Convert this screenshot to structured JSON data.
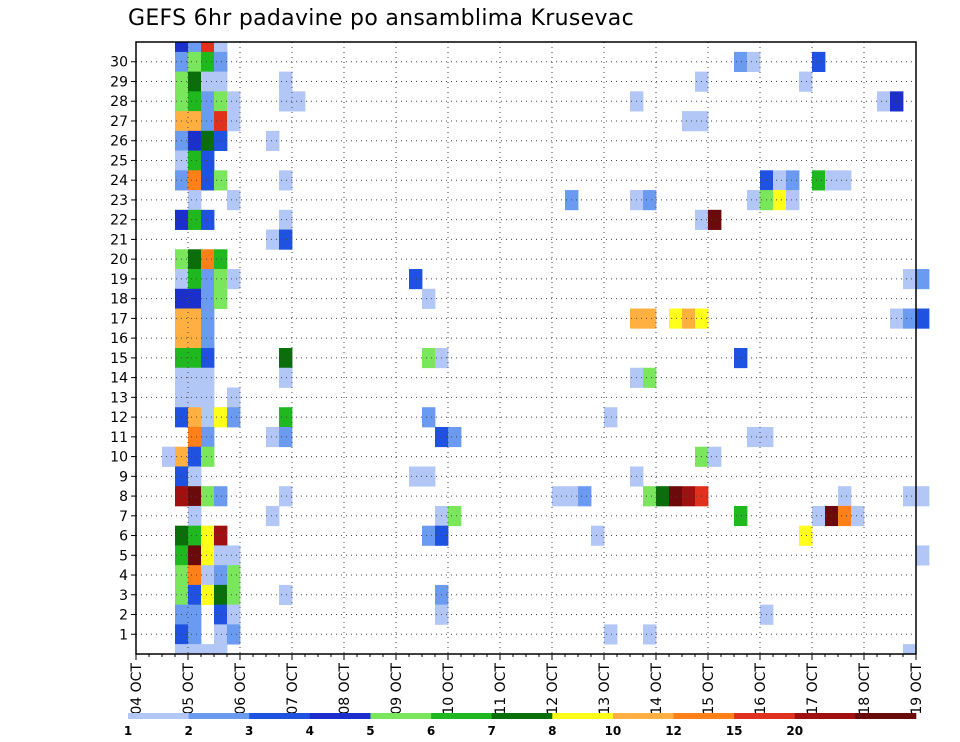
{
  "chart_data": {
    "type": "heatmap",
    "title": "GEFS 6hr padavine po ansamblima Krusevac",
    "xlabel": "",
    "ylabel": "",
    "x_tick_labels": [
      "04 OCT",
      "05 OCT",
      "06 OCT",
      "07 OCT",
      "08 OCT",
      "09 OCT",
      "10 OCT",
      "11 OCT",
      "12 OCT",
      "13 OCT",
      "14 OCT",
      "15 OCT",
      "16 OCT",
      "17 OCT",
      "18 OCT",
      "19 OCT"
    ],
    "y_tick_labels": [
      "1",
      "2",
      "3",
      "4",
      "5",
      "6",
      "7",
      "8",
      "9",
      "10",
      "11",
      "12",
      "13",
      "14",
      "15",
      "16",
      "17",
      "18",
      "19",
      "20",
      "21",
      "22",
      "23",
      "24",
      "25",
      "26",
      "27",
      "28",
      "29",
      "30"
    ],
    "time_steps_per_day": 4,
    "grid": true,
    "colorbar": {
      "position": "bottom",
      "labels": [
        "1",
        "2",
        "3",
        "4",
        "5",
        "6",
        "7",
        "8",
        "10",
        "12",
        "15",
        "20"
      ],
      "colors": [
        "#b3c7f7",
        "#6b9bf0",
        "#1f52e0",
        "#1a2fcc",
        "#7ae65c",
        "#1fb81f",
        "#0a6e0a",
        "#ffff1a",
        "#ffb040",
        "#ff7f19",
        "#e0301e",
        "#a01010",
        "#6b0a0a"
      ]
    },
    "colors": [
      "#b3c7f7",
      "#6b9bf0",
      "#1f52e0",
      "#1a2fcc",
      "#7ae65c",
      "#1fb81f",
      "#0a6e0a",
      "#ffff1a",
      "#ffb040",
      "#ff7f19",
      "#e0301e",
      "#a01010",
      "#6b0a0a"
    ],
    "cells": [
      [
        30,
        3,
        3
      ],
      [
        30,
        4,
        1
      ],
      [
        30,
        5,
        10
      ],
      [
        30,
        6,
        0
      ],
      [
        29,
        3,
        1
      ],
      [
        29,
        4,
        4
      ],
      [
        29,
        5,
        5
      ],
      [
        29,
        6,
        1
      ],
      [
        29,
        46,
        1
      ],
      [
        29,
        47,
        0
      ],
      [
        29,
        52,
        2
      ],
      [
        28,
        3,
        4
      ],
      [
        28,
        4,
        6
      ],
      [
        28,
        5,
        0
      ],
      [
        28,
        6,
        0
      ],
      [
        28,
        11,
        0
      ],
      [
        28,
        43,
        0
      ],
      [
        28,
        51,
        0
      ],
      [
        27,
        3,
        4
      ],
      [
        27,
        4,
        5
      ],
      [
        27,
        5,
        1
      ],
      [
        27,
        6,
        4
      ],
      [
        27,
        7,
        0
      ],
      [
        27,
        11,
        0
      ],
      [
        27,
        12,
        0
      ],
      [
        27,
        38,
        0
      ],
      [
        27,
        57,
        0
      ],
      [
        27,
        58,
        3
      ],
      [
        26,
        3,
        8
      ],
      [
        26,
        4,
        8
      ],
      [
        26,
        5,
        1
      ],
      [
        26,
        6,
        10
      ],
      [
        26,
        7,
        0
      ],
      [
        26,
        42,
        0
      ],
      [
        26,
        43,
        0
      ],
      [
        25,
        3,
        1
      ],
      [
        25,
        4,
        3
      ],
      [
        25,
        5,
        6
      ],
      [
        25,
        6,
        2
      ],
      [
        25,
        10,
        0
      ],
      [
        24,
        3,
        0
      ],
      [
        24,
        4,
        5
      ],
      [
        24,
        5,
        2
      ],
      [
        23,
        3,
        1
      ],
      [
        23,
        4,
        9
      ],
      [
        23,
        5,
        2
      ],
      [
        23,
        6,
        4
      ],
      [
        23,
        11,
        0
      ],
      [
        23,
        48,
        2
      ],
      [
        23,
        49,
        0
      ],
      [
        23,
        50,
        1
      ],
      [
        23,
        52,
        5
      ],
      [
        23,
        53,
        0
      ],
      [
        23,
        54,
        0
      ],
      [
        22,
        4,
        0
      ],
      [
        22,
        7,
        0
      ],
      [
        22,
        33,
        1
      ],
      [
        22,
        38,
        0
      ],
      [
        22,
        39,
        1
      ],
      [
        22,
        47,
        0
      ],
      [
        22,
        48,
        4
      ],
      [
        22,
        49,
        7
      ],
      [
        22,
        50,
        0
      ],
      [
        21,
        3,
        3
      ],
      [
        21,
        4,
        5
      ],
      [
        21,
        5,
        2
      ],
      [
        21,
        11,
        0
      ],
      [
        21,
        43,
        0
      ],
      [
        21,
        44,
        12
      ],
      [
        20,
        10,
        0
      ],
      [
        20,
        11,
        2
      ],
      [
        19,
        3,
        4
      ],
      [
        19,
        4,
        6
      ],
      [
        19,
        5,
        9
      ],
      [
        19,
        6,
        5
      ],
      [
        18,
        3,
        0
      ],
      [
        18,
        4,
        5
      ],
      [
        18,
        5,
        1
      ],
      [
        18,
        6,
        4
      ],
      [
        18,
        7,
        0
      ],
      [
        18,
        21,
        2
      ],
      [
        18,
        59,
        0
      ],
      [
        18,
        60,
        1
      ],
      [
        17,
        3,
        3
      ],
      [
        17,
        4,
        3
      ],
      [
        17,
        5,
        1
      ],
      [
        17,
        6,
        4
      ],
      [
        17,
        22,
        0
      ],
      [
        16,
        3,
        8
      ],
      [
        16,
        4,
        8
      ],
      [
        16,
        5,
        1
      ],
      [
        16,
        38,
        8
      ],
      [
        16,
        39,
        8
      ],
      [
        16,
        41,
        7
      ],
      [
        16,
        42,
        8
      ],
      [
        16,
        43,
        7
      ],
      [
        16,
        58,
        0
      ],
      [
        16,
        59,
        1
      ],
      [
        16,
        60,
        2
      ],
      [
        15,
        3,
        8
      ],
      [
        15,
        4,
        8
      ],
      [
        15,
        5,
        1
      ],
      [
        14,
        3,
        5
      ],
      [
        14,
        4,
        5
      ],
      [
        14,
        5,
        2
      ],
      [
        14,
        11,
        6
      ],
      [
        14,
        22,
        4
      ],
      [
        14,
        23,
        0
      ],
      [
        14,
        46,
        2
      ],
      [
        13,
        3,
        0
      ],
      [
        13,
        4,
        0
      ],
      [
        13,
        5,
        0
      ],
      [
        13,
        11,
        0
      ],
      [
        13,
        38,
        0
      ],
      [
        13,
        39,
        4
      ],
      [
        12,
        3,
        0
      ],
      [
        12,
        4,
        0
      ],
      [
        12,
        5,
        0
      ],
      [
        12,
        7,
        0
      ],
      [
        11,
        3,
        2
      ],
      [
        11,
        4,
        8
      ],
      [
        11,
        5,
        0
      ],
      [
        11,
        6,
        7
      ],
      [
        11,
        7,
        1
      ],
      [
        11,
        11,
        5
      ],
      [
        11,
        22,
        1
      ],
      [
        11,
        36,
        0
      ],
      [
        10,
        4,
        9
      ],
      [
        10,
        5,
        1
      ],
      [
        10,
        10,
        0
      ],
      [
        10,
        11,
        1
      ],
      [
        10,
        23,
        2
      ],
      [
        10,
        24,
        1
      ],
      [
        10,
        47,
        0
      ],
      [
        10,
        48,
        0
      ],
      [
        9,
        2,
        0
      ],
      [
        9,
        3,
        8
      ],
      [
        9,
        4,
        2
      ],
      [
        9,
        5,
        4
      ],
      [
        9,
        43,
        4
      ],
      [
        9,
        44,
        0
      ],
      [
        8,
        3,
        2
      ],
      [
        8,
        4,
        0
      ],
      [
        8,
        21,
        0
      ],
      [
        8,
        22,
        0
      ],
      [
        8,
        38,
        0
      ],
      [
        7,
        3,
        11
      ],
      [
        7,
        4,
        12
      ],
      [
        7,
        5,
        4
      ],
      [
        7,
        6,
        1
      ],
      [
        7,
        11,
        0
      ],
      [
        7,
        32,
        0
      ],
      [
        7,
        33,
        0
      ],
      [
        7,
        34,
        1
      ],
      [
        7,
        39,
        4
      ],
      [
        7,
        40,
        6
      ],
      [
        7,
        41,
        12
      ],
      [
        7,
        42,
        11
      ],
      [
        7,
        43,
        10
      ],
      [
        7,
        54,
        0
      ],
      [
        7,
        59,
        0
      ],
      [
        7,
        60,
        0
      ],
      [
        6,
        4,
        0
      ],
      [
        6,
        10,
        0
      ],
      [
        6,
        23,
        0
      ],
      [
        6,
        24,
        4
      ],
      [
        6,
        46,
        5
      ],
      [
        6,
        52,
        0
      ],
      [
        6,
        53,
        12
      ],
      [
        6,
        54,
        9
      ],
      [
        6,
        55,
        0
      ],
      [
        5,
        3,
        6
      ],
      [
        5,
        4,
        5
      ],
      [
        5,
        5,
        7
      ],
      [
        5,
        6,
        11
      ],
      [
        5,
        22,
        1
      ],
      [
        5,
        23,
        2
      ],
      [
        5,
        35,
        0
      ],
      [
        5,
        51,
        7
      ],
      [
        4,
        3,
        5
      ],
      [
        4,
        4,
        12
      ],
      [
        4,
        5,
        7
      ],
      [
        4,
        6,
        0
      ],
      [
        4,
        7,
        0
      ],
      [
        4,
        60,
        0
      ],
      [
        3,
        3,
        4
      ],
      [
        3,
        4,
        9
      ],
      [
        3,
        5,
        0
      ],
      [
        3,
        6,
        1
      ],
      [
        3,
        7,
        4
      ],
      [
        2,
        3,
        4
      ],
      [
        2,
        4,
        2
      ],
      [
        2,
        5,
        7
      ],
      [
        2,
        6,
        6
      ],
      [
        2,
        7,
        4
      ],
      [
        2,
        11,
        0
      ],
      [
        2,
        23,
        1
      ],
      [
        1,
        3,
        1
      ],
      [
        1,
        4,
        1
      ],
      [
        1,
        6,
        2
      ],
      [
        1,
        7,
        0
      ],
      [
        1,
        23,
        0
      ],
      [
        1,
        48,
        0
      ],
      [
        0,
        3,
        2
      ],
      [
        0,
        4,
        1
      ],
      [
        0,
        6,
        0
      ],
      [
        0,
        7,
        1
      ],
      [
        0,
        36,
        0
      ],
      [
        0,
        39,
        0
      ],
      [
        -1,
        3,
        0
      ],
      [
        -1,
        4,
        0
      ],
      [
        -1,
        5,
        0
      ],
      [
        -1,
        6,
        0
      ],
      [
        -1,
        59,
        0
      ]
    ]
  }
}
